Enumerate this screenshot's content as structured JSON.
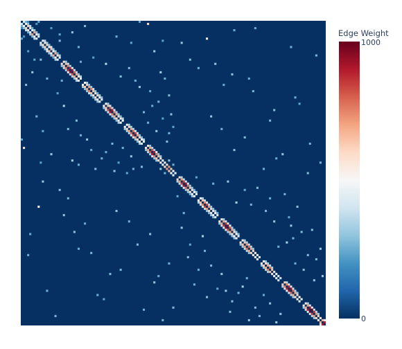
{
  "chart_data": {
    "type": "heatmap",
    "title": "",
    "xlabel": "",
    "ylabel": "",
    "matrix_size": 145,
    "colorbar": {
      "title": "Edge Weight",
      "min": 0,
      "max": 1000,
      "tick_labels": [
        "0",
        "1000"
      ]
    },
    "colorscale": [
      [
        0.0,
        "#053061"
      ],
      [
        0.1,
        "#2166ac"
      ],
      [
        0.2,
        "#4393c3"
      ],
      [
        0.3,
        "#92c5de"
      ],
      [
        0.4,
        "#d1e5f0"
      ],
      [
        0.5,
        "#f7f7f7"
      ],
      [
        0.6,
        "#fddbc7"
      ],
      [
        0.7,
        "#f4a582"
      ],
      [
        0.8,
        "#d6604d"
      ],
      [
        0.9,
        "#b2182b"
      ],
      [
        1.0,
        "#67001f"
      ]
    ],
    "background_color": "#053061",
    "block_sizes": [
      73,
      72
    ],
    "communities": [
      {
        "start": 0,
        "end": 8
      },
      {
        "start": 9,
        "end": 18
      },
      {
        "start": 19,
        "end": 28
      },
      {
        "start": 29,
        "end": 38
      },
      {
        "start": 39,
        "end": 48
      },
      {
        "start": 49,
        "end": 58
      },
      {
        "start": 59,
        "end": 73
      },
      {
        "start": 74,
        "end": 83
      },
      {
        "start": 84,
        "end": 93
      },
      {
        "start": 94,
        "end": 103
      },
      {
        "start": 104,
        "end": 113
      },
      {
        "start": 114,
        "end": 123
      },
      {
        "start": 124,
        "end": 133
      },
      {
        "start": 134,
        "end": 144
      }
    ],
    "edges": [
      [
        0,
        1,
        420
      ],
      [
        0,
        2,
        260
      ],
      [
        0,
        3,
        180
      ],
      [
        1,
        2,
        520
      ],
      [
        1,
        3,
        300
      ],
      [
        2,
        3,
        610
      ],
      [
        2,
        4,
        380
      ],
      [
        3,
        4,
        560
      ],
      [
        3,
        5,
        260
      ],
      [
        4,
        5,
        480
      ],
      [
        4,
        6,
        330
      ],
      [
        5,
        6,
        700
      ],
      [
        5,
        7,
        290
      ],
      [
        6,
        7,
        520
      ],
      [
        6,
        8,
        350
      ],
      [
        7,
        8,
        450
      ],
      [
        0,
        8,
        230
      ],
      [
        1,
        7,
        210
      ],
      [
        9,
        10,
        460
      ],
      [
        9,
        11,
        340
      ],
      [
        10,
        11,
        580
      ],
      [
        10,
        12,
        300
      ],
      [
        11,
        12,
        620
      ],
      [
        11,
        13,
        280
      ],
      [
        12,
        13,
        560
      ],
      [
        12,
        14,
        400
      ],
      [
        13,
        14,
        650
      ],
      [
        13,
        15,
        300
      ],
      [
        14,
        15,
        520
      ],
      [
        14,
        16,
        310
      ],
      [
        15,
        16,
        690
      ],
      [
        15,
        17,
        250
      ],
      [
        16,
        17,
        560
      ],
      [
        16,
        18,
        330
      ],
      [
        17,
        18,
        470
      ],
      [
        9,
        18,
        280
      ],
      [
        19,
        20,
        560
      ],
      [
        19,
        21,
        300
      ],
      [
        20,
        21,
        650
      ],
      [
        20,
        22,
        380
      ],
      [
        21,
        22,
        760
      ],
      [
        21,
        23,
        330
      ],
      [
        22,
        23,
        880
      ],
      [
        22,
        24,
        450
      ],
      [
        23,
        24,
        920
      ],
      [
        23,
        25,
        400
      ],
      [
        24,
        25,
        810
      ],
      [
        24,
        26,
        360
      ],
      [
        25,
        26,
        700
      ],
      [
        25,
        27,
        300
      ],
      [
        26,
        27,
        600
      ],
      [
        26,
        28,
        340
      ],
      [
        27,
        28,
        520
      ],
      [
        19,
        28,
        250
      ],
      [
        29,
        30,
        500
      ],
      [
        29,
        31,
        330
      ],
      [
        30,
        31,
        620
      ],
      [
        30,
        32,
        280
      ],
      [
        31,
        32,
        700
      ],
      [
        31,
        33,
        310
      ],
      [
        32,
        33,
        760
      ],
      [
        32,
        34,
        420
      ],
      [
        33,
        34,
        640
      ],
      [
        33,
        35,
        300
      ],
      [
        34,
        35,
        560
      ],
      [
        34,
        36,
        260
      ],
      [
        35,
        36,
        600
      ],
      [
        35,
        37,
        330
      ],
      [
        36,
        37,
        520
      ],
      [
        36,
        38,
        290
      ],
      [
        37,
        38,
        470
      ],
      [
        39,
        40,
        540
      ],
      [
        39,
        41,
        310
      ],
      [
        40,
        41,
        650
      ],
      [
        40,
        42,
        400
      ],
      [
        41,
        42,
        820
      ],
      [
        41,
        43,
        380
      ],
      [
        42,
        43,
        900
      ],
      [
        42,
        44,
        430
      ],
      [
        43,
        44,
        760
      ],
      [
        43,
        45,
        320
      ],
      [
        44,
        45,
        690
      ],
      [
        44,
        46,
        300
      ],
      [
        45,
        46,
        610
      ],
      [
        45,
        47,
        280
      ],
      [
        46,
        47,
        540
      ],
      [
        46,
        48,
        340
      ],
      [
        47,
        48,
        500
      ],
      [
        49,
        50,
        500
      ],
      [
        49,
        51,
        320
      ],
      [
        50,
        51,
        610
      ],
      [
        50,
        52,
        330
      ],
      [
        51,
        52,
        700
      ],
      [
        51,
        53,
        360
      ],
      [
        52,
        53,
        780
      ],
      [
        52,
        54,
        420
      ],
      [
        53,
        54,
        850
      ],
      [
        53,
        55,
        400
      ],
      [
        54,
        55,
        720
      ],
      [
        54,
        56,
        310
      ],
      [
        55,
        56,
        620
      ],
      [
        55,
        57,
        290
      ],
      [
        56,
        57,
        520
      ],
      [
        56,
        58,
        330
      ],
      [
        57,
        58,
        470
      ],
      [
        59,
        60,
        580
      ],
      [
        59,
        61,
        300
      ],
      [
        60,
        61,
        700
      ],
      [
        60,
        62,
        360
      ],
      [
        61,
        62,
        820
      ],
      [
        61,
        63,
        340
      ],
      [
        62,
        63,
        900
      ],
      [
        62,
        64,
        450
      ],
      [
        63,
        64,
        760
      ],
      [
        63,
        65,
        300
      ],
      [
        64,
        65,
        650
      ],
      [
        64,
        66,
        320
      ],
      [
        65,
        66,
        560
      ],
      [
        66,
        67,
        520
      ],
      [
        67,
        68,
        480
      ],
      [
        68,
        69,
        600
      ],
      [
        69,
        70,
        720
      ],
      [
        70,
        71,
        640
      ],
      [
        71,
        72,
        520
      ],
      [
        72,
        73,
        450
      ],
      [
        66,
        70,
        300
      ],
      [
        68,
        72,
        260
      ],
      [
        74,
        75,
        600
      ],
      [
        74,
        76,
        340
      ],
      [
        75,
        76,
        720
      ],
      [
        75,
        77,
        380
      ],
      [
        76,
        77,
        840
      ],
      [
        76,
        78,
        400
      ],
      [
        77,
        78,
        920
      ],
      [
        77,
        79,
        420
      ],
      [
        78,
        79,
        780
      ],
      [
        78,
        80,
        310
      ],
      [
        79,
        80,
        640
      ],
      [
        79,
        81,
        300
      ],
      [
        80,
        81,
        560
      ],
      [
        80,
        82,
        260
      ],
      [
        81,
        82,
        500
      ],
      [
        81,
        83,
        300
      ],
      [
        82,
        83,
        460
      ],
      [
        74,
        83,
        240
      ],
      [
        84,
        85,
        520
      ],
      [
        84,
        86,
        330
      ],
      [
        85,
        86,
        660
      ],
      [
        85,
        87,
        380
      ],
      [
        86,
        87,
        760
      ],
      [
        86,
        88,
        410
      ],
      [
        87,
        88,
        840
      ],
      [
        87,
        89,
        360
      ],
      [
        88,
        89,
        720
      ],
      [
        88,
        90,
        300
      ],
      [
        89,
        90,
        600
      ],
      [
        89,
        91,
        280
      ],
      [
        90,
        91,
        540
      ],
      [
        90,
        92,
        310
      ],
      [
        91,
        92,
        500
      ],
      [
        91,
        93,
        270
      ],
      [
        92,
        93,
        460
      ],
      [
        94,
        95,
        560
      ],
      [
        94,
        96,
        320
      ],
      [
        95,
        96,
        700
      ],
      [
        95,
        97,
        390
      ],
      [
        96,
        97,
        860
      ],
      [
        96,
        98,
        430
      ],
      [
        97,
        98,
        940
      ],
      [
        97,
        99,
        450
      ],
      [
        98,
        99,
        820
      ],
      [
        98,
        100,
        330
      ],
      [
        99,
        100,
        700
      ],
      [
        99,
        101,
        300
      ],
      [
        100,
        101,
        600
      ],
      [
        100,
        102,
        290
      ],
      [
        101,
        102,
        520
      ],
      [
        101,
        103,
        280
      ],
      [
        102,
        103,
        460
      ],
      [
        104,
        105,
        540
      ],
      [
        104,
        106,
        310
      ],
      [
        105,
        106,
        640
      ],
      [
        105,
        107,
        330
      ],
      [
        106,
        107,
        720
      ],
      [
        106,
        108,
        380
      ],
      [
        107,
        108,
        780
      ],
      [
        107,
        109,
        350
      ],
      [
        108,
        109,
        690
      ],
      [
        108,
        110,
        300
      ],
      [
        109,
        110,
        600
      ],
      [
        110,
        111,
        540
      ],
      [
        111,
        112,
        480
      ],
      [
        112,
        113,
        450
      ],
      [
        114,
        115,
        500
      ],
      [
        114,
        116,
        300
      ],
      [
        115,
        116,
        620
      ],
      [
        115,
        117,
        330
      ],
      [
        116,
        117,
        700
      ],
      [
        116,
        118,
        370
      ],
      [
        117,
        118,
        760
      ],
      [
        117,
        119,
        340
      ],
      [
        118,
        119,
        650
      ],
      [
        119,
        120,
        560
      ],
      [
        120,
        121,
        500
      ],
      [
        121,
        122,
        460
      ],
      [
        122,
        123,
        420
      ],
      [
        124,
        125,
        620
      ],
      [
        124,
        126,
        360
      ],
      [
        125,
        126,
        760
      ],
      [
        125,
        127,
        420
      ],
      [
        126,
        127,
        880
      ],
      [
        126,
        128,
        460
      ],
      [
        127,
        128,
        930
      ],
      [
        127,
        129,
        400
      ],
      [
        128,
        129,
        800
      ],
      [
        128,
        130,
        330
      ],
      [
        129,
        130,
        700
      ],
      [
        129,
        131,
        300
      ],
      [
        130,
        131,
        600
      ],
      [
        131,
        132,
        520
      ],
      [
        132,
        133,
        460
      ],
      [
        134,
        135,
        560
      ],
      [
        134,
        136,
        330
      ],
      [
        135,
        136,
        700
      ],
      [
        135,
        137,
        400
      ],
      [
        136,
        137,
        900
      ],
      [
        136,
        138,
        460
      ],
      [
        137,
        138,
        980
      ],
      [
        137,
        139,
        420
      ],
      [
        138,
        139,
        860
      ],
      [
        138,
        140,
        360
      ],
      [
        139,
        140,
        720
      ],
      [
        139,
        141,
        310
      ],
      [
        140,
        141,
        620
      ],
      [
        141,
        142,
        540
      ],
      [
        142,
        143,
        680
      ],
      [
        143,
        144,
        900
      ],
      [
        142,
        144,
        420
      ],
      [
        2,
        30,
        280
      ],
      [
        5,
        24,
        300
      ],
      [
        7,
        45,
        260
      ],
      [
        10,
        52,
        240
      ],
      [
        14,
        63,
        310
      ],
      [
        20,
        40,
        350
      ],
      [
        22,
        51,
        280
      ],
      [
        24,
        66,
        330
      ],
      [
        27,
        68,
        260
      ],
      [
        31,
        56,
        300
      ],
      [
        35,
        70,
        280
      ],
      [
        40,
        62,
        250
      ],
      [
        44,
        71,
        290
      ],
      [
        48,
        60,
        260
      ],
      [
        52,
        64,
        300
      ],
      [
        57,
        69,
        280
      ],
      [
        3,
        14,
        220
      ],
      [
        6,
        18,
        240
      ],
      [
        12,
        27,
        260
      ],
      [
        17,
        34,
        230
      ],
      [
        26,
        47,
        280
      ],
      [
        28,
        54,
        250
      ],
      [
        33,
        61,
        240
      ],
      [
        38,
        65,
        260
      ],
      [
        43,
        58,
        270
      ],
      [
        46,
        67,
        230
      ],
      [
        50,
        72,
        240
      ],
      [
        53,
        70,
        260
      ],
      [
        76,
        98,
        300
      ],
      [
        79,
        112,
        280
      ],
      [
        82,
        125,
        260
      ],
      [
        86,
        102,
        330
      ],
      [
        88,
        131,
        290
      ],
      [
        90,
        116,
        270
      ],
      [
        95,
        120,
        310
      ],
      [
        97,
        128,
        300
      ],
      [
        99,
        138,
        280
      ],
      [
        103,
        129,
        260
      ],
      [
        105,
        126,
        330
      ],
      [
        108,
        142,
        300
      ],
      [
        111,
        136,
        280
      ],
      [
        113,
        140,
        270
      ],
      [
        118,
        134,
        290
      ],
      [
        121,
        143,
        320
      ],
      [
        123,
        139,
        300
      ],
      [
        77,
        91,
        260
      ],
      [
        80,
        106,
        240
      ],
      [
        84,
        118,
        250
      ],
      [
        87,
        109,
        260
      ],
      [
        93,
        127,
        240
      ],
      [
        100,
        133,
        280
      ],
      [
        107,
        122,
        260
      ],
      [
        115,
        130,
        250
      ],
      [
        8,
        88,
        520
      ],
      [
        10,
        76,
        300
      ],
      [
        18,
        80,
        280
      ],
      [
        20,
        92,
        300
      ],
      [
        22,
        84,
        260
      ],
      [
        25,
        100,
        290
      ],
      [
        30,
        96,
        250
      ],
      [
        33,
        110,
        270
      ],
      [
        36,
        130,
        260
      ],
      [
        42,
        120,
        280
      ],
      [
        45,
        90,
        300
      ],
      [
        47,
        118,
        270
      ],
      [
        55,
        106,
        280
      ],
      [
        58,
        137,
        260
      ],
      [
        61,
        101,
        290
      ],
      [
        63,
        124,
        300
      ],
      [
        67,
        142,
        270
      ],
      [
        70,
        115,
        260
      ],
      [
        72,
        136,
        280
      ],
      [
        4,
        101,
        250
      ],
      [
        12,
        128,
        260
      ],
      [
        16,
        140,
        270
      ],
      [
        27,
        108,
        250
      ],
      [
        39,
        132,
        240
      ],
      [
        51,
        95,
        260
      ],
      [
        65,
        121,
        250
      ],
      [
        0,
        56,
        240
      ],
      [
        1,
        60,
        600
      ],
      [
        3,
        111,
        250
      ],
      [
        9,
        67,
        230
      ]
    ]
  }
}
